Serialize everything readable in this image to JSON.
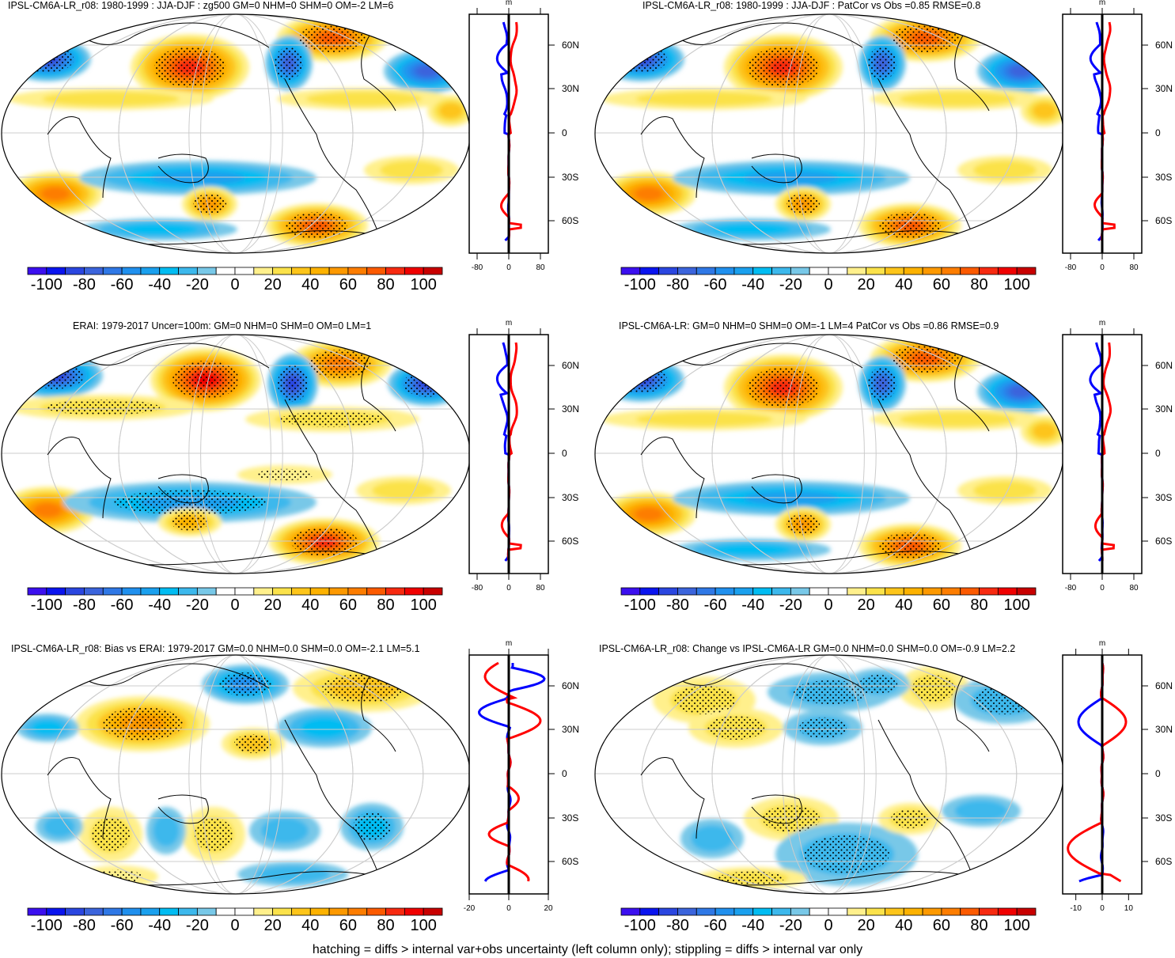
{
  "panels": [
    {
      "title": "IPSL-CM6A-LR_r08: 1980-1999 : JJA-DJF : zg500 GM=0 NHM=0 SHM=0 OM=-2 LM=6",
      "profile_ticks": [
        "-80",
        "0",
        "80"
      ],
      "profile_range": [
        -100,
        100
      ]
    },
    {
      "title": "IPSL-CM6A-LR_r08: 1980-1999 : JJA-DJF : PatCor vs Obs =0.85 RMSE=0.8",
      "profile_ticks": [
        "-80",
        "0",
        "80"
      ],
      "profile_range": [
        -100,
        100
      ]
    },
    {
      "title": "ERAI: 1979-2017 Uncer=100m: GM=0 NHM=0 SHM=0 OM=0 LM=1",
      "profile_ticks": [
        "-80",
        "0",
        "80"
      ],
      "profile_range": [
        -100,
        100
      ]
    },
    {
      "title": "IPSL-CM6A-LR: GM=0 NHM=0 SHM=0 OM=-1 LM=4 PatCor vs Obs =0.86 RMSE=0.9",
      "profile_ticks": [
        "-80",
        "0",
        "80"
      ],
      "profile_range": [
        -100,
        100
      ]
    },
    {
      "title": "IPSL-CM6A-LR_r08: Bias vs ERAI: 1979-2017 GM=0.0 NHM=0.0 SHM=0.0 OM=-2.1 LM=5.1",
      "profile_ticks": [
        "-20",
        "0",
        "20"
      ],
      "profile_range": [
        -20,
        20
      ]
    },
    {
      "title": "IPSL-CM6A-LR_r08: Change vs IPSL-CM6A-LR GM=0.0 NHM=0.0 SHM=0.0 OM=-0.9 LM=2.2",
      "profile_ticks": [
        "-10",
        "0",
        "10"
      ],
      "profile_range": [
        -15,
        15
      ]
    }
  ],
  "profile_unit": "m",
  "lat_labels": [
    "60N",
    "30N",
    "0",
    "30S",
    "60S"
  ],
  "colorbar": {
    "labels": [
      "-100",
      "-80",
      "-60",
      "-40",
      "-20",
      "0",
      "20",
      "40",
      "60",
      "80",
      "100"
    ],
    "colors": [
      "#3b0fef",
      "#0a14ef",
      "#2a46e0",
      "#3b64dc",
      "#2f78e6",
      "#2090ee",
      "#1aa0ee",
      "#00bcf2",
      "#3cb8ec",
      "#78c8e8",
      "#ffffff",
      "#ffffff",
      "#fff08c",
      "#fbe24a",
      "#fdc51a",
      "#fdb200",
      "#fd9900",
      "#fd7d00",
      "#fc5a00",
      "#f72a10",
      "#f00000",
      "#c80000"
    ]
  },
  "series_colors": {
    "model": "#ff0000",
    "obs": "#0000ff",
    "zero": "#000000"
  },
  "caption": "hatching = diffs > internal var+obs uncertainty (left column only); stippling = diffs > internal var only"
}
